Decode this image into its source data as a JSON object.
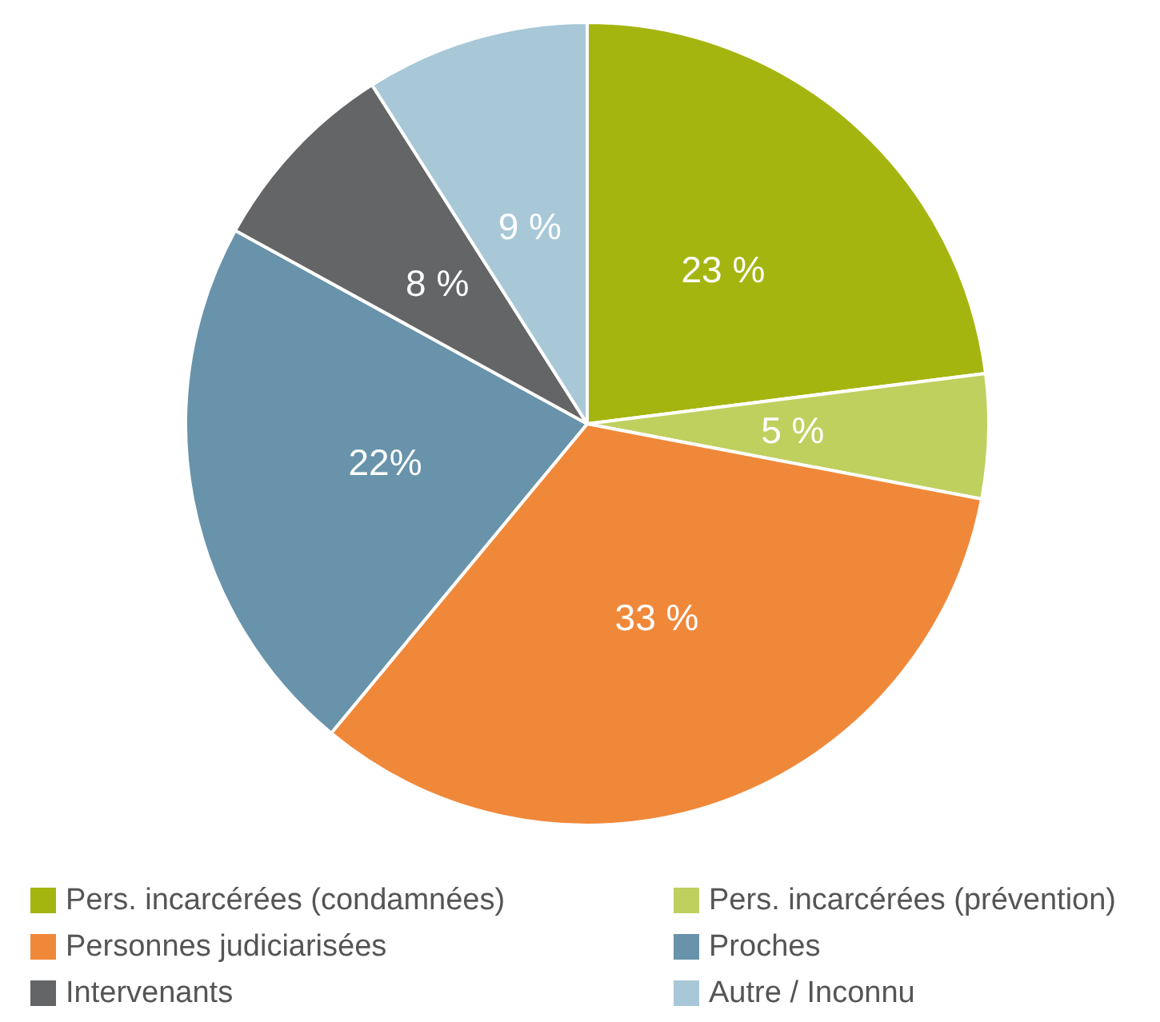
{
  "chart_data": {
    "type": "pie",
    "categories": [
      "Pers. incarcérées (condamnées)",
      "Pers. incarcérées (prévention)",
      "Personnes judiciarisées",
      "Proches",
      "Intervenants",
      "Autre / Inconnu"
    ],
    "values": [
      23,
      5,
      33,
      22,
      8,
      9
    ],
    "value_labels": [
      "23 %",
      "5 %",
      "33 %",
      "22%",
      "8 %",
      "9 %"
    ],
    "colors": [
      "#a5b510",
      "#bfd05e",
      "#f0883a",
      "#6893ab",
      "#646567",
      "#a8c8d8"
    ],
    "legend": "bottom"
  }
}
